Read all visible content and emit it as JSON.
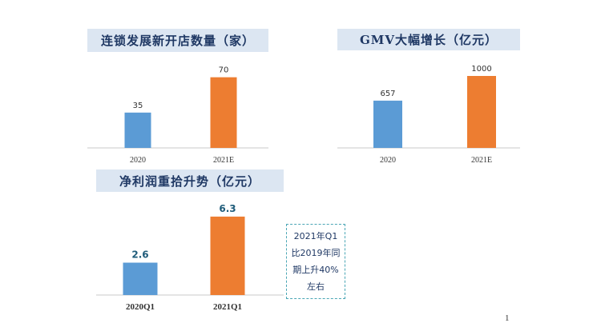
{
  "chart_data": [
    {
      "type": "bar",
      "title": "连锁发展新开店数量（家）",
      "categories": [
        "2020",
        "2021E"
      ],
      "values": [
        35,
        70
      ],
      "value_labels": [
        "35",
        "70"
      ],
      "ylim": [
        0,
        80
      ],
      "bar_colors": [
        "#5b9bd5",
        "#ed7d31"
      ],
      "grid": false
    },
    {
      "type": "bar",
      "title": "GMV大幅增长（亿元）",
      "categories": [
        "2020",
        "2021E"
      ],
      "values": [
        657,
        1000
      ],
      "value_labels": [
        "657",
        "1000"
      ],
      "ylim": [
        0,
        1100
      ],
      "bar_colors": [
        "#5b9bd5",
        "#ed7d31"
      ],
      "grid": false
    },
    {
      "type": "bar",
      "title": "净利润重拾升势（亿元）",
      "categories": [
        "2020Q1",
        "2021Q1"
      ],
      "values": [
        2.6,
        6.3
      ],
      "value_labels": [
        "2.6",
        "6.3"
      ],
      "ylim": [
        0,
        7
      ],
      "bar_colors": [
        "#5b9bd5",
        "#ed7d31"
      ],
      "grid": false
    }
  ],
  "note": {
    "lines": [
      "2021年Q1",
      "比2019年同",
      "期上升40%",
      "左右"
    ]
  },
  "page_number": "1",
  "colors": {
    "title_bg": "#dce6f2",
    "title_text": "#1f3864",
    "value_label_bold": "#1f5c7a",
    "note_border": "#4aa6b5"
  }
}
